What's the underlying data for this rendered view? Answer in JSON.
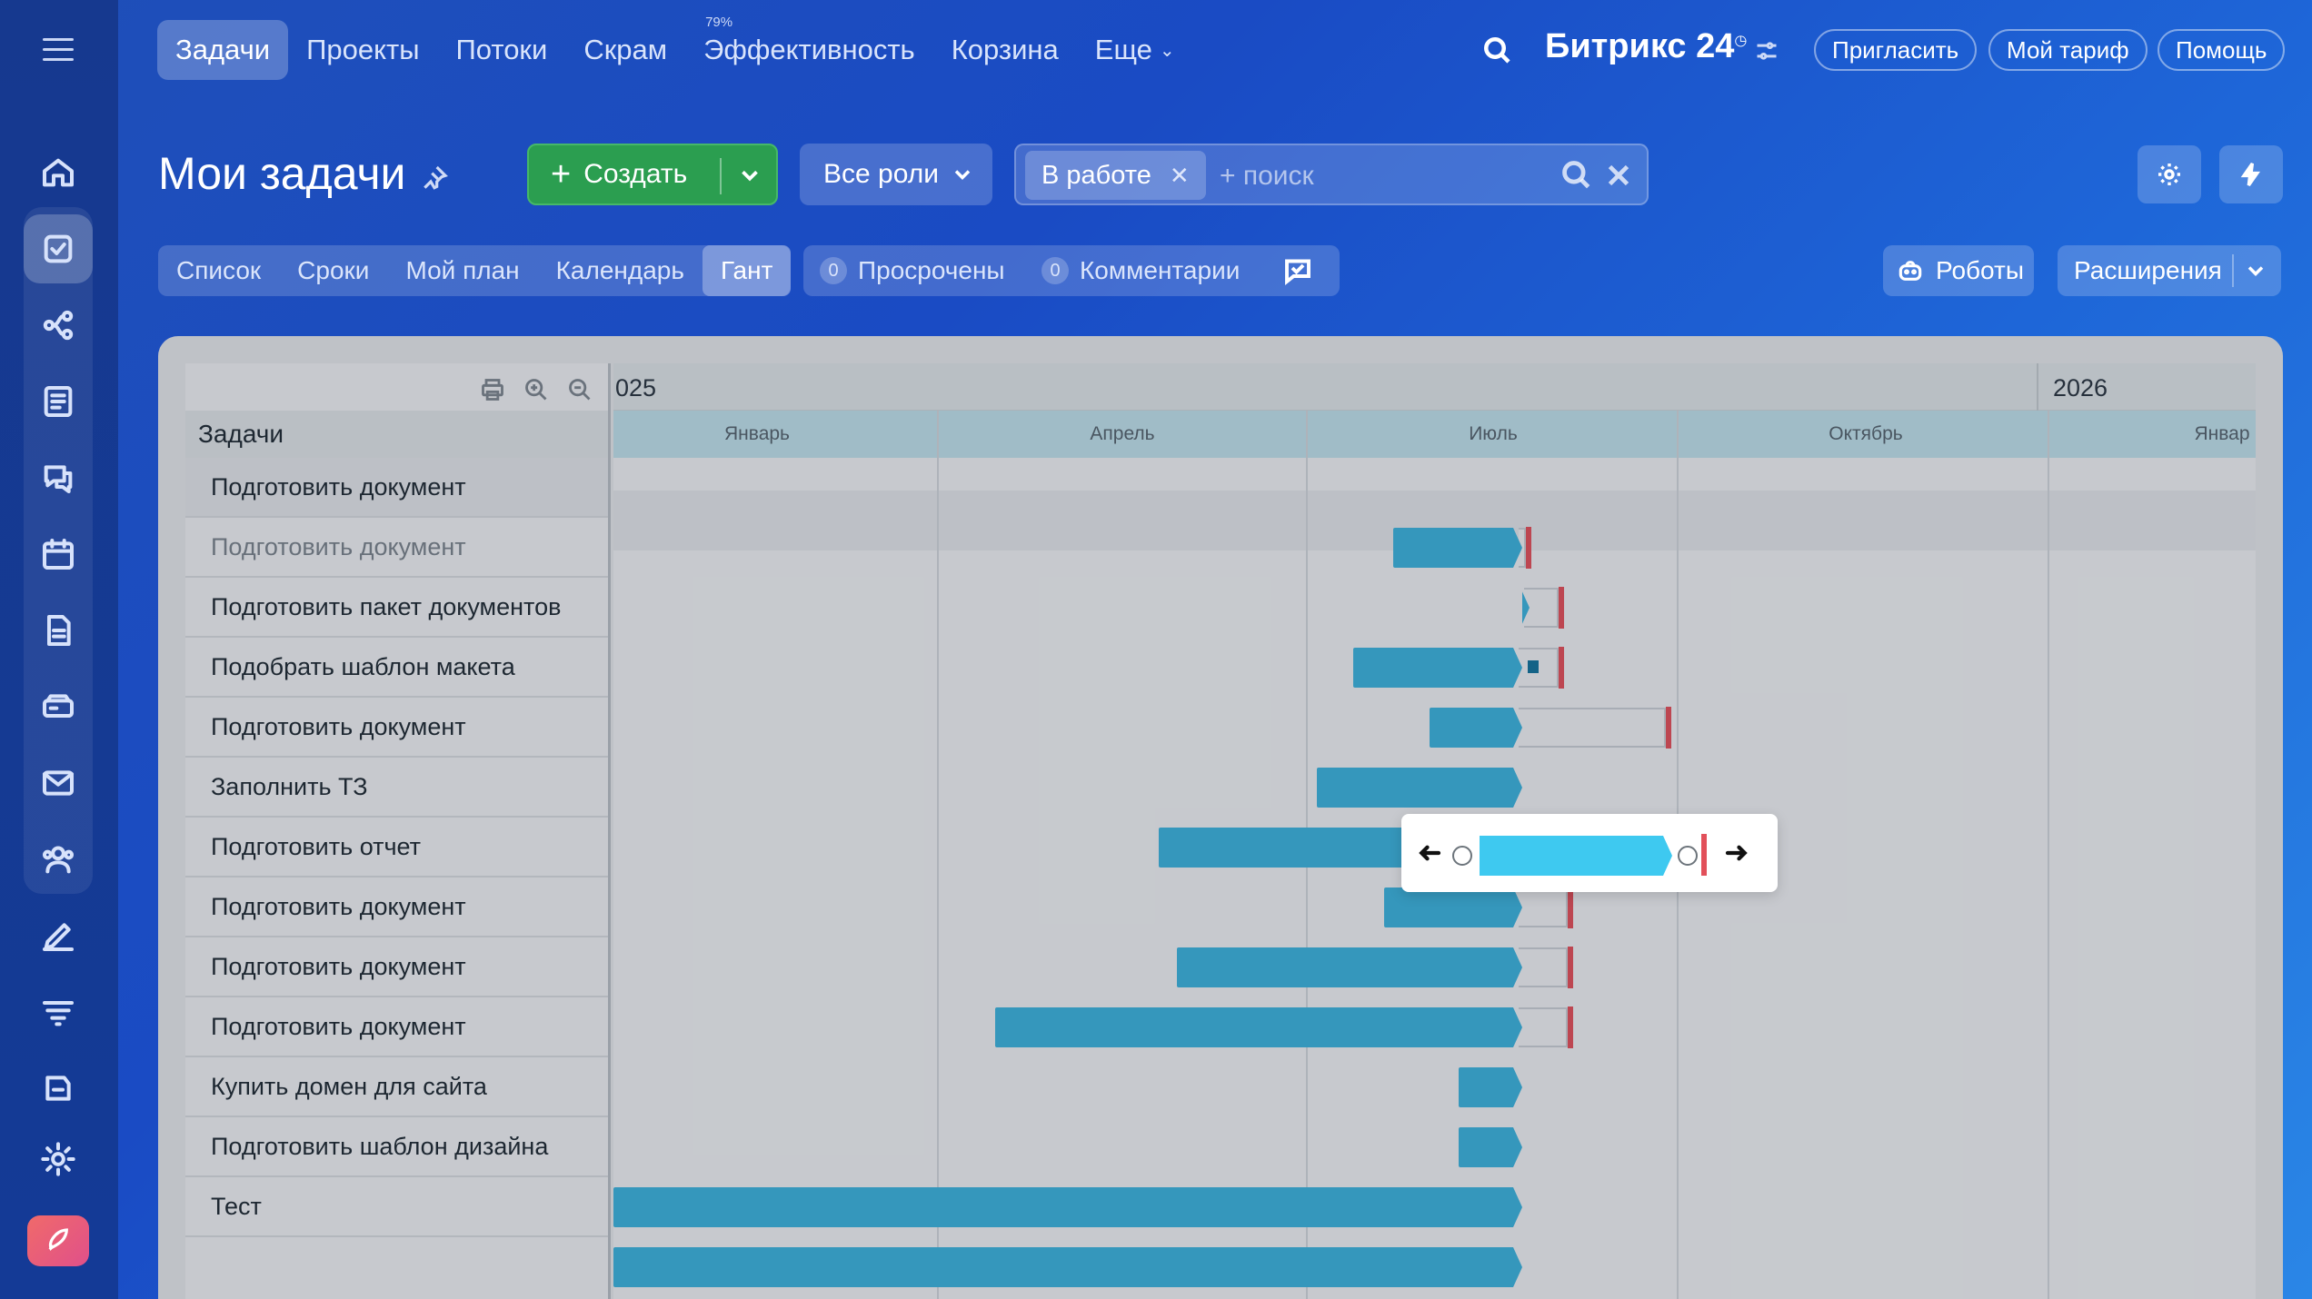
{
  "nav": {
    "items": [
      {
        "label": "Задачи",
        "active": true
      },
      {
        "label": "Проекты"
      },
      {
        "label": "Потоки"
      },
      {
        "label": "Скрам"
      },
      {
        "label": "Эффективность",
        "sup": "79%"
      },
      {
        "label": "Корзина"
      },
      {
        "label": "Еще",
        "dropdown": true
      }
    ],
    "brand": "Битрикс 24",
    "invite": "Пригласить",
    "tariff": "Мой тариф",
    "help": "Помощь"
  },
  "header": {
    "title": "Мои задачи",
    "create_label": "Создать",
    "roles_label": "Все роли",
    "filter_tag": "В работе",
    "search_placeholder": "+ поиск"
  },
  "tabs": {
    "items": [
      {
        "label": "Список"
      },
      {
        "label": "Сроки"
      },
      {
        "label": "Мой план"
      },
      {
        "label": "Календарь"
      },
      {
        "label": "Гант",
        "active": true
      }
    ],
    "overdue_count": "0",
    "overdue_label": "Просрочены",
    "comments_count": "0",
    "comments_label": "Комментарии",
    "robots_label": "Роботы",
    "extensions_label": "Расширения"
  },
  "gantt": {
    "column_title": "Задачи",
    "years": [
      "025",
      "2026"
    ],
    "months": [
      "Январь",
      "Апрель",
      "Июль",
      "Октябрь",
      "Январ"
    ],
    "tasks": [
      {
        "title": "Подготовить документ",
        "hover": true
      },
      {
        "title": "Подготовить документ",
        "muted": true
      },
      {
        "title": "Подготовить пакет документов"
      },
      {
        "title": "Подобрать шаблон макета"
      },
      {
        "title": "Подготовить документ"
      },
      {
        "title": "Заполнить ТЗ"
      },
      {
        "title": "Подготовить отчет"
      },
      {
        "title": "Подготовить документ"
      },
      {
        "title": "Подготовить документ"
      },
      {
        "title": "Подготовить документ"
      },
      {
        "title": "Купить домен для сайта"
      },
      {
        "title": "Подготовить шаблон дизайна"
      },
      {
        "title": "Тест"
      }
    ]
  },
  "colors": {
    "accent": "#2b9e50",
    "bar": "#3cb2dc",
    "bar_selected": "#3ec9f0",
    "deadline": "#e2505a"
  }
}
